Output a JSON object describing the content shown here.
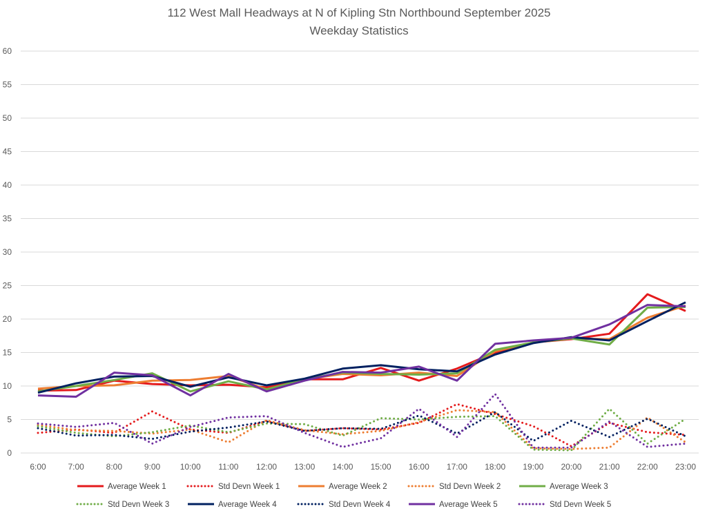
{
  "chart_data": {
    "type": "line",
    "title": "112 West Mall Headways at N of Kipling Stn Northbound September 2025",
    "subtitle": "Weekday Statistics",
    "xlabel": "",
    "ylabel": "",
    "ylim": [
      0,
      60
    ],
    "yticks": [
      "0",
      "5",
      "10",
      "15",
      "20",
      "25",
      "30",
      "35",
      "40",
      "45",
      "50",
      "55",
      "60"
    ],
    "grid": true,
    "legend_position": "bottom",
    "categories": [
      "6:00",
      "7:00",
      "8:00",
      "9:00",
      "10:00",
      "11:00",
      "12:00",
      "13:00",
      "14:00",
      "15:00",
      "16:00",
      "17:00",
      "18:00",
      "19:00",
      "20:00",
      "21:00",
      "22:00",
      "23:00"
    ],
    "series": [
      {
        "name": "Average Week 1",
        "color": "#E41A1C",
        "style": "solid",
        "values": [
          9.3,
          9.4,
          10.8,
          10.3,
          10.1,
          10.2,
          9.8,
          11.0,
          11.0,
          12.7,
          10.8,
          12.6,
          15.0,
          16.5,
          17.0,
          17.8,
          23.7,
          21.2
        ]
      },
      {
        "name": "Std Devn Week 1",
        "color": "#E41A1C",
        "style": "dotted",
        "values": [
          3.0,
          3.5,
          3.0,
          6.2,
          3.5,
          3.0,
          4.8,
          3.3,
          3.7,
          3.5,
          4.5,
          7.3,
          5.8,
          4.0,
          1.0,
          4.5,
          3.1,
          2.7
        ]
      },
      {
        "name": "Average Week 2",
        "color": "#ED7D31",
        "style": "solid",
        "values": [
          9.6,
          10.0,
          10.1,
          10.8,
          10.9,
          11.5,
          9.5,
          11.0,
          11.8,
          11.6,
          12.0,
          11.5,
          15.2,
          16.5,
          17.1,
          17.0,
          20.2,
          22.0
        ]
      },
      {
        "name": "Std Devn Week 2",
        "color": "#ED7D31",
        "style": "dotted",
        "values": [
          4.2,
          3.4,
          3.3,
          2.9,
          3.5,
          1.6,
          4.9,
          3.4,
          2.8,
          3.3,
          4.6,
          6.4,
          6.1,
          0.7,
          0.6,
          0.8,
          5.3,
          1.6
        ]
      },
      {
        "name": "Average Week 3",
        "color": "#70AD47",
        "style": "solid",
        "values": [
          9.2,
          10.0,
          10.9,
          11.9,
          9.2,
          10.7,
          9.5,
          11.0,
          12.0,
          11.8,
          11.7,
          11.9,
          15.4,
          16.5,
          17.1,
          16.2,
          21.7,
          21.8
        ]
      },
      {
        "name": "Std Devn Week 3",
        "color": "#70AD47",
        "style": "dotted",
        "values": [
          4.0,
          3.0,
          2.5,
          3.1,
          4.1,
          3.1,
          4.4,
          4.3,
          2.6,
          5.2,
          5.0,
          5.4,
          5.5,
          0.5,
          0.4,
          6.6,
          1.4,
          5.1
        ]
      },
      {
        "name": "Average Week 4",
        "color": "#002060",
        "style": "solid",
        "values": [
          9.0,
          10.4,
          11.4,
          11.5,
          9.9,
          11.3,
          10.1,
          11.1,
          12.6,
          13.1,
          12.5,
          12.2,
          14.7,
          16.4,
          17.3,
          16.8,
          19.7,
          22.5
        ]
      },
      {
        "name": "Std Devn Week 4",
        "color": "#002060",
        "style": "dotted",
        "values": [
          3.7,
          2.6,
          2.7,
          2.1,
          3.2,
          3.8,
          4.7,
          3.3,
          3.7,
          3.6,
          5.6,
          2.9,
          6.1,
          1.8,
          4.8,
          2.4,
          5.1,
          2.5
        ]
      },
      {
        "name": "Average Week 5",
        "color": "#7030A0",
        "style": "solid",
        "values": [
          8.6,
          8.4,
          12.0,
          11.6,
          8.6,
          11.8,
          9.2,
          10.8,
          12.1,
          12.0,
          12.9,
          10.8,
          16.3,
          16.8,
          17.2,
          19.2,
          22.1,
          21.9
        ]
      },
      {
        "name": "Std Devn Week 5",
        "color": "#7030A0",
        "style": "dotted",
        "values": [
          4.4,
          3.9,
          4.5,
          1.4,
          3.9,
          5.3,
          5.5,
          3.0,
          0.9,
          2.2,
          6.6,
          2.4,
          8.8,
          0.8,
          0.8,
          4.7,
          0.9,
          1.4
        ]
      }
    ]
  }
}
